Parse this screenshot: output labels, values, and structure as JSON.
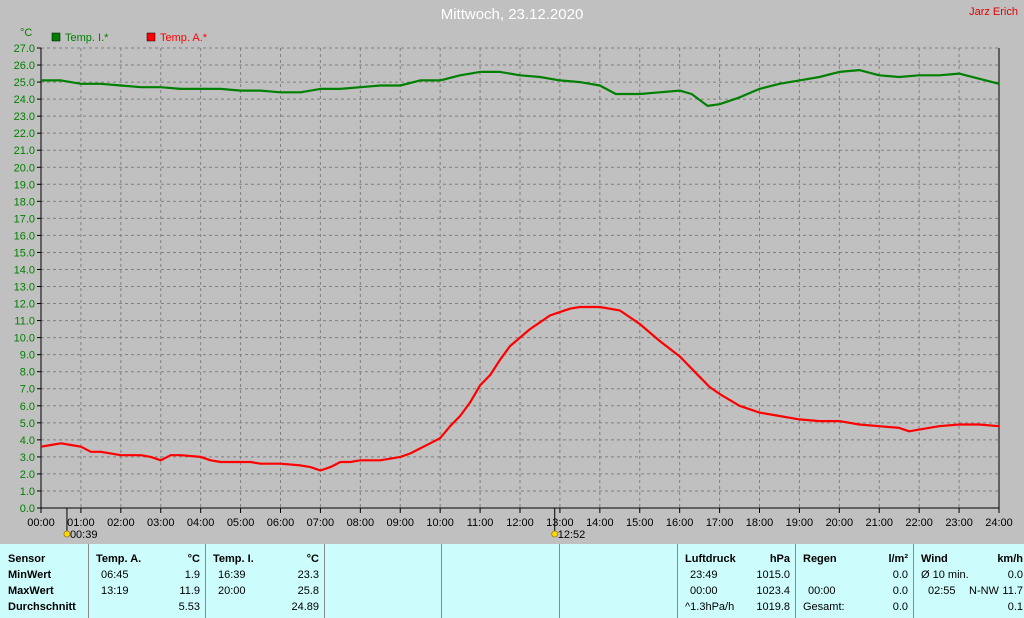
{
  "header": {
    "title": "Mittwoch, 23.12.2020",
    "author": "Jarz Erich"
  },
  "chart_data": {
    "type": "line",
    "ylabel": "°C",
    "ylim": [
      0,
      27
    ],
    "y_ticks": [
      "0.0",
      "1.0",
      "2.0",
      "3.0",
      "4.0",
      "5.0",
      "6.0",
      "7.0",
      "8.0",
      "9.0",
      "10.0",
      "11.0",
      "12.0",
      "13.0",
      "14.0",
      "15.0",
      "16.0",
      "17.0",
      "18.0",
      "19.0",
      "20.0",
      "21.0",
      "22.0",
      "23.0",
      "24.0",
      "25.0",
      "26.0",
      "27.0"
    ],
    "x_ticks": [
      "00:00",
      "01:00",
      "02:00",
      "03:00",
      "04:00",
      "05:00",
      "06:00",
      "07:00",
      "08:00",
      "09:00",
      "10:00",
      "11:00",
      "12:00",
      "13:00",
      "14:00",
      "15:00",
      "16:00",
      "17:00",
      "18:00",
      "19:00",
      "20:00",
      "21:00",
      "22:00",
      "23:00",
      "24:00"
    ],
    "xlim": [
      0,
      24
    ],
    "grid": true,
    "legend_placement": "top-left",
    "sun_markers": [
      {
        "label": "00:39",
        "hour": 0.65
      },
      {
        "label": "12:52",
        "hour": 12.87
      }
    ],
    "series": [
      {
        "name": "Temp. I.*",
        "color": "#008000",
        "x": [
          0,
          0.5,
          1,
          1.5,
          2,
          2.5,
          3,
          3.5,
          4,
          4.5,
          5,
          5.5,
          6,
          6.5,
          7,
          7.5,
          8,
          8.5,
          9,
          9.5,
          10,
          10.5,
          11,
          11.5,
          12,
          12.5,
          13,
          13.5,
          14,
          14.4,
          14.5,
          15,
          15.5,
          16,
          16.3,
          16.7,
          17,
          17.5,
          18,
          18.5,
          19,
          19.5,
          20,
          20.5,
          21,
          21.5,
          22,
          22.5,
          23,
          23.5,
          24
        ],
        "values": [
          25.1,
          25.1,
          24.9,
          24.9,
          24.8,
          24.7,
          24.7,
          24.6,
          24.6,
          24.6,
          24.5,
          24.5,
          24.4,
          24.4,
          24.6,
          24.6,
          24.7,
          24.8,
          24.8,
          25.1,
          25.1,
          25.4,
          25.6,
          25.6,
          25.4,
          25.3,
          25.1,
          25.0,
          24.8,
          24.3,
          24.3,
          24.3,
          24.4,
          24.5,
          24.3,
          23.6,
          23.7,
          24.1,
          24.6,
          24.9,
          25.1,
          25.3,
          25.6,
          25.7,
          25.4,
          25.3,
          25.4,
          25.4,
          25.5,
          25.2,
          24.9
        ]
      },
      {
        "name": "Temp. A.*",
        "color": "#ff0000",
        "x": [
          0,
          0.25,
          0.5,
          0.75,
          1,
          1.25,
          1.5,
          2,
          2.5,
          2.75,
          3,
          3.25,
          3.5,
          4,
          4.25,
          4.5,
          5,
          5.25,
          5.5,
          6,
          6.5,
          6.75,
          7,
          7.25,
          7.5,
          7.75,
          8,
          8.25,
          8.5,
          9,
          9.25,
          9.5,
          9.75,
          10,
          10.25,
          10.5,
          10.75,
          11,
          11.25,
          11.5,
          11.75,
          12,
          12.25,
          12.5,
          12.75,
          13,
          13.25,
          13.5,
          14,
          14.5,
          15,
          15.5,
          16,
          16.5,
          16.75,
          17,
          17.5,
          18,
          18.5,
          19,
          19.5,
          20,
          20.5,
          21,
          21.5,
          21.75,
          22,
          22.5,
          23,
          23.5,
          24
        ],
        "values": [
          3.6,
          3.7,
          3.8,
          3.7,
          3.6,
          3.3,
          3.3,
          3.1,
          3.1,
          3.0,
          2.8,
          3.1,
          3.1,
          3.0,
          2.8,
          2.7,
          2.7,
          2.7,
          2.6,
          2.6,
          2.5,
          2.4,
          2.2,
          2.4,
          2.7,
          2.7,
          2.8,
          2.8,
          2.8,
          3.0,
          3.2,
          3.5,
          3.8,
          4.1,
          4.8,
          5.4,
          6.2,
          7.2,
          7.8,
          8.7,
          9.5,
          10.0,
          10.5,
          10.9,
          11.3,
          11.5,
          11.7,
          11.8,
          11.8,
          11.6,
          10.8,
          9.8,
          8.9,
          7.7,
          7.1,
          6.7,
          6.0,
          5.6,
          5.4,
          5.2,
          5.1,
          5.1,
          4.9,
          4.8,
          4.7,
          4.5,
          4.6,
          4.8,
          4.9,
          4.9,
          4.8
        ]
      }
    ]
  },
  "table": {
    "sensor": {
      "header": "Sensor",
      "rows": [
        "MinWert",
        "MaxWert",
        "Durchschnitt"
      ]
    },
    "temp_a": {
      "header": "Temp. A.",
      "unit": "°C",
      "rows": [
        {
          "time": "06:45",
          "value": "1.9"
        },
        {
          "time": "13:19",
          "value": "11.9"
        },
        {
          "time": "",
          "value": "5.53"
        }
      ]
    },
    "temp_i": {
      "header": "Temp. I.",
      "unit": "°C",
      "rows": [
        {
          "time": "16:39",
          "value": "23.3"
        },
        {
          "time": "20:00",
          "value": "25.8"
        },
        {
          "time": "",
          "value": "24.89"
        }
      ]
    },
    "luftdruck": {
      "header": "Luftdruck",
      "unit": "hPa",
      "rows": [
        {
          "time": "23:49",
          "value": "1015.0"
        },
        {
          "time": "00:00",
          "value": "1023.4"
        },
        {
          "time": "^1.3hPa/h",
          "value": "1019.8"
        }
      ]
    },
    "regen": {
      "header": "Regen",
      "unit": "l/m²",
      "rows": [
        {
          "time": "",
          "value": "0.0"
        },
        {
          "time": "00:00",
          "value": "0.0"
        },
        {
          "time": "Gesamt:",
          "value": "0.0"
        }
      ]
    },
    "wind": {
      "header": "Wind",
      "unit": "km/h",
      "rows": [
        {
          "time": "Ø 10 min.",
          "dir": "",
          "value": "0.0"
        },
        {
          "time": "02:55",
          "dir": "N-NW",
          "value": "11.7"
        },
        {
          "time": "",
          "dir": "",
          "value": "0.1"
        }
      ]
    }
  }
}
